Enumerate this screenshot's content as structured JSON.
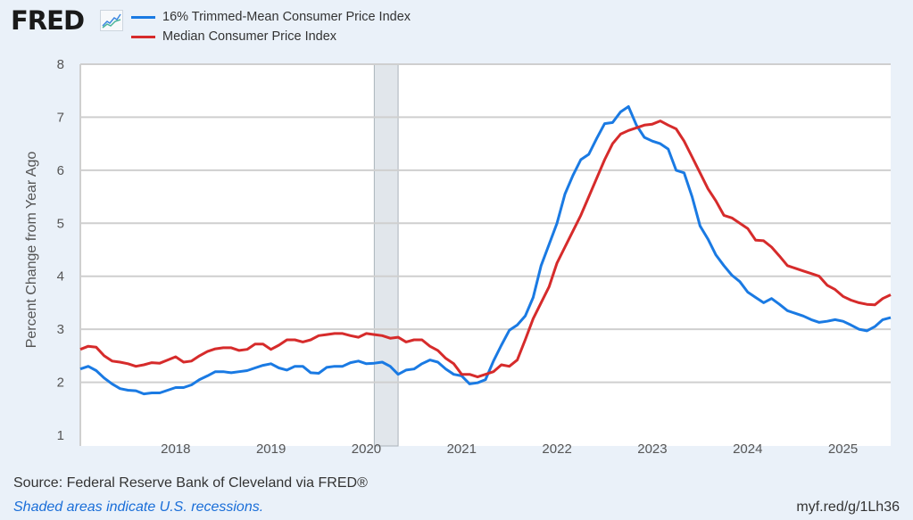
{
  "header": {
    "logo_text": "FRED",
    "logo_icon": "line-chart-icon"
  },
  "footer": {
    "source": "Source: Federal Reserve Bank of Cleveland via FRED®",
    "recession_note": "Shaded areas indicate U.S. recessions.",
    "short_url": "myf.red/g/1Lh36"
  },
  "chart_data": {
    "type": "line",
    "title": "",
    "xlabel": "",
    "ylabel": "Percent Change from Year Ago",
    "ylim": [
      1,
      8
    ],
    "xlim": [
      "2017-01",
      "2025-07"
    ],
    "yticks": [
      "1",
      "2",
      "3",
      "4",
      "5",
      "6",
      "7",
      "8"
    ],
    "xticks": [
      "2018",
      "2019",
      "2020",
      "2021",
      "2022",
      "2023",
      "2024",
      "2025"
    ],
    "grid": true,
    "legend_position": "top-left",
    "recessions": [
      {
        "start": "2020-02",
        "end": "2020-04"
      }
    ],
    "recession_color": "#e1e6eb",
    "x_start": "2017-01",
    "x_frequency": "monthly",
    "series": [
      {
        "name": "16% Trimmed-Mean Consumer Price Index",
        "color": "#1a7ae3",
        "values": [
          2.25,
          2.3,
          2.22,
          2.08,
          1.97,
          1.88,
          1.85,
          1.84,
          1.78,
          1.8,
          1.8,
          1.85,
          1.9,
          1.9,
          1.95,
          2.05,
          2.12,
          2.2,
          2.2,
          2.18,
          2.2,
          2.22,
          2.27,
          2.32,
          2.35,
          2.27,
          2.23,
          2.3,
          2.3,
          2.18,
          2.17,
          2.28,
          2.3,
          2.3,
          2.37,
          2.4,
          2.35,
          2.36,
          2.38,
          2.3,
          2.15,
          2.23,
          2.25,
          2.35,
          2.42,
          2.38,
          2.25,
          2.15,
          2.12,
          1.97,
          1.99,
          2.05,
          2.4,
          2.7,
          2.98,
          3.08,
          3.25,
          3.6,
          4.2,
          4.6,
          5.0,
          5.55,
          5.9,
          6.2,
          6.3,
          6.6,
          6.88,
          6.9,
          7.1,
          7.2,
          6.85,
          6.62,
          6.55,
          6.5,
          6.4,
          6.0,
          5.95,
          5.5,
          4.95,
          4.7,
          4.4,
          4.2,
          4.02,
          3.9,
          3.7,
          3.6,
          3.5,
          3.58,
          3.47,
          3.35,
          3.3,
          3.25,
          3.18,
          3.13,
          3.15,
          3.18,
          3.15,
          3.08,
          3.0,
          2.97,
          3.05,
          3.18,
          3.22
        ]
      },
      {
        "name": "Median Consumer Price Index",
        "color": "#d62b2b",
        "values": [
          2.62,
          2.68,
          2.66,
          2.5,
          2.4,
          2.38,
          2.35,
          2.3,
          2.33,
          2.37,
          2.36,
          2.42,
          2.48,
          2.38,
          2.4,
          2.5,
          2.58,
          2.63,
          2.65,
          2.65,
          2.6,
          2.62,
          2.72,
          2.72,
          2.62,
          2.7,
          2.8,
          2.8,
          2.76,
          2.8,
          2.88,
          2.9,
          2.92,
          2.92,
          2.88,
          2.85,
          2.92,
          2.9,
          2.88,
          2.83,
          2.85,
          2.76,
          2.8,
          2.8,
          2.68,
          2.6,
          2.45,
          2.35,
          2.15,
          2.15,
          2.1,
          2.15,
          2.2,
          2.33,
          2.3,
          2.42,
          2.8,
          3.2,
          3.5,
          3.8,
          4.25,
          4.55,
          4.85,
          5.15,
          5.5,
          5.85,
          6.2,
          6.5,
          6.68,
          6.75,
          6.8,
          6.85,
          6.87,
          6.93,
          6.85,
          6.78,
          6.55,
          6.25,
          5.95,
          5.65,
          5.42,
          5.15,
          5.1,
          5.0,
          4.9,
          4.68,
          4.67,
          4.55,
          4.38,
          4.2,
          4.15,
          4.1,
          4.05,
          4.0,
          3.83,
          3.75,
          3.62,
          3.55,
          3.5,
          3.47,
          3.46,
          3.58,
          3.65
        ]
      }
    ]
  }
}
